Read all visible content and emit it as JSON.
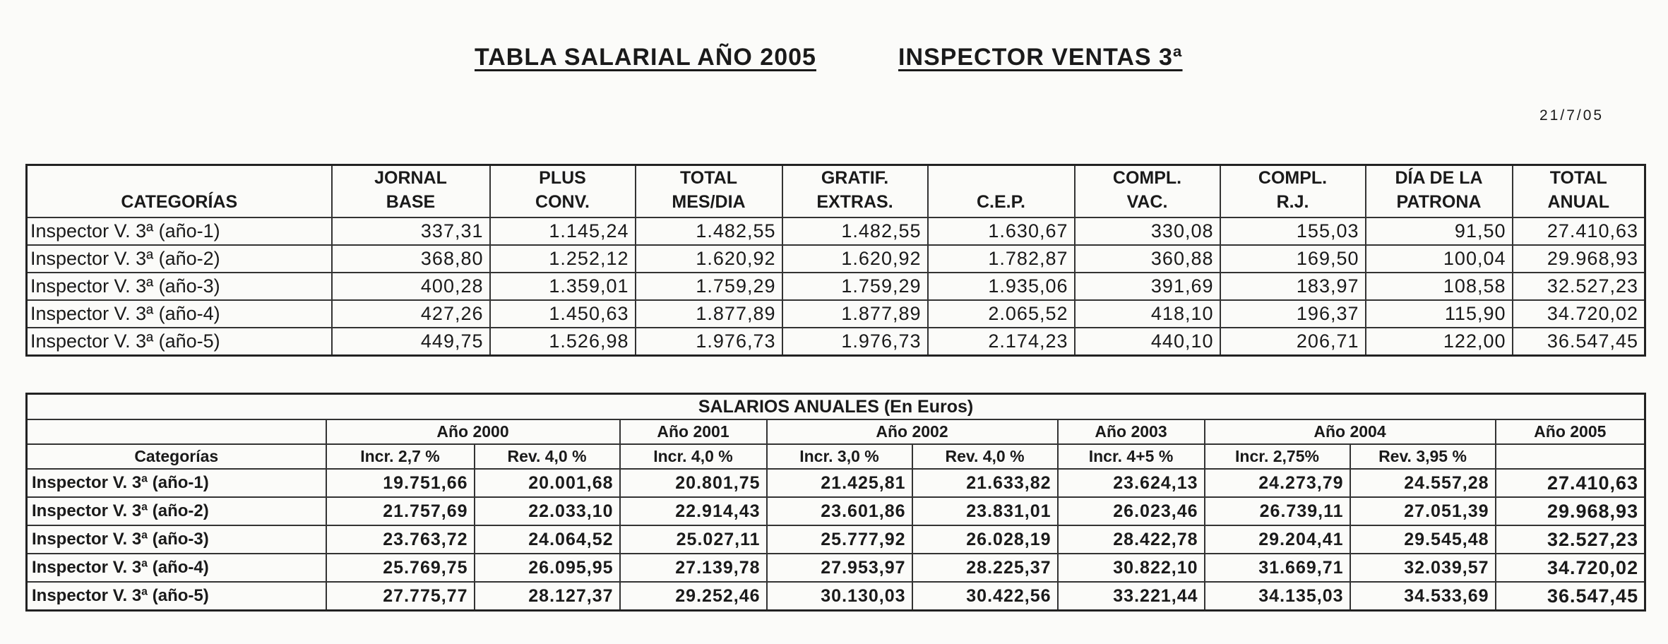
{
  "title": {
    "part1": "TABLA SALARIAL AÑO 2005",
    "part2": "INSPECTOR VENTAS 3ª"
  },
  "date": "21/7/05",
  "table1": {
    "headers": [
      {
        "line1": "",
        "line2": "CATEGORÍAS"
      },
      {
        "line1": "JORNAL",
        "line2": "BASE"
      },
      {
        "line1": "PLUS",
        "line2": "CONV."
      },
      {
        "line1": "TOTAL",
        "line2": "MES/DIA"
      },
      {
        "line1": "GRATIF.",
        "line2": "EXTRAS."
      },
      {
        "line1": "",
        "line2": "C.E.P."
      },
      {
        "line1": "COMPL.",
        "line2": "VAC."
      },
      {
        "line1": "COMPL.",
        "line2": "R.J."
      },
      {
        "line1": "DÍA DE LA",
        "line2": "PATRONA"
      },
      {
        "line1": "TOTAL",
        "line2": "ANUAL"
      }
    ],
    "rows": [
      [
        "Inspector V. 3ª (año-1)",
        "337,31",
        "1.145,24",
        "1.482,55",
        "1.482,55",
        "1.630,67",
        "330,08",
        "155,03",
        "91,50",
        "27.410,63"
      ],
      [
        "Inspector V. 3ª (año-2)",
        "368,80",
        "1.252,12",
        "1.620,92",
        "1.620,92",
        "1.782,87",
        "360,88",
        "169,50",
        "100,04",
        "29.968,93"
      ],
      [
        "Inspector V. 3ª (año-3)",
        "400,28",
        "1.359,01",
        "1.759,29",
        "1.759,29",
        "1.935,06",
        "391,69",
        "183,97",
        "108,58",
        "32.527,23"
      ],
      [
        "Inspector V. 3ª (año-4)",
        "427,26",
        "1.450,63",
        "1.877,89",
        "1.877,89",
        "2.065,52",
        "418,10",
        "196,37",
        "115,90",
        "34.720,02"
      ],
      [
        "Inspector V. 3ª (año-5)",
        "449,75",
        "1.526,98",
        "1.976,73",
        "1.976,73",
        "2.174,23",
        "440,10",
        "206,71",
        "122,00",
        "36.547,45"
      ]
    ]
  },
  "table2": {
    "caption": "SALARIOS ANUALES (En Euros)",
    "years": [
      "Año 2000",
      "Año 2001",
      "Año 2002",
      "Año 2003",
      "Año 2004",
      "Año 2005"
    ],
    "category_label": "Categorías",
    "subheaders": [
      "Incr. 2,7 %",
      "Rev. 4,0 %",
      "Incr. 4,0 %",
      "Incr. 3,0 %",
      "Rev. 4,0 %",
      "Incr. 4+5 %",
      "Incr. 2,75%",
      "Rev. 3,95 %",
      ""
    ],
    "rows": [
      [
        "Inspector V. 3ª (año-1)",
        "19.751,66",
        "20.001,68",
        "20.801,75",
        "21.425,81",
        "21.633,82",
        "23.624,13",
        "24.273,79",
        "24.557,28",
        "27.410,63"
      ],
      [
        "Inspector V. 3ª (año-2)",
        "21.757,69",
        "22.033,10",
        "22.914,43",
        "23.601,86",
        "23.831,01",
        "26.023,46",
        "26.739,11",
        "27.051,39",
        "29.968,93"
      ],
      [
        "Inspector V. 3ª (año-3)",
        "23.763,72",
        "24.064,52",
        "25.027,11",
        "25.777,92",
        "26.028,19",
        "28.422,78",
        "29.204,41",
        "29.545,48",
        "32.527,23"
      ],
      [
        "Inspector V. 3ª (año-4)",
        "25.769,75",
        "26.095,95",
        "27.139,78",
        "27.953,97",
        "28.225,37",
        "30.822,10",
        "31.669,71",
        "32.039,57",
        "34.720,02"
      ],
      [
        "Inspector V. 3ª (año-5)",
        "27.775,77",
        "28.127,37",
        "29.252,46",
        "30.130,03",
        "30.422,56",
        "33.221,44",
        "34.135,03",
        "34.533,69",
        "36.547,45"
      ]
    ]
  }
}
